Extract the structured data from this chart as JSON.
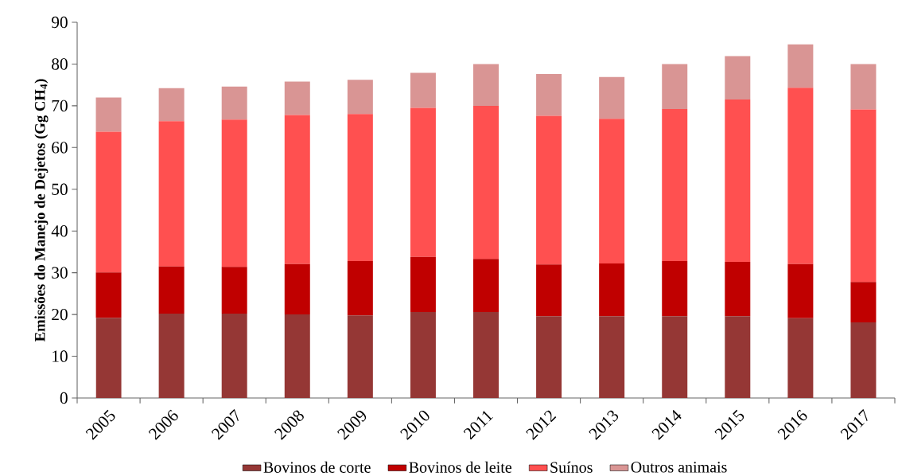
{
  "chart_data": {
    "type": "bar",
    "stacked": true,
    "ylabel": "Emissões do Manejo de Dejetos (Gg CH$_{4}$)",
    "categories": [
      "2005",
      "2006",
      "2007",
      "2008",
      "2009",
      "2010",
      "2011",
      "2012",
      "2013",
      "2014",
      "2015",
      "2016",
      "2017"
    ],
    "series": [
      {
        "name": "Bovinos de corte",
        "color": "#953735",
        "values": [
          19.2,
          20.2,
          20.2,
          20.0,
          19.8,
          20.6,
          20.6,
          19.6,
          19.6,
          19.6,
          19.6,
          19.1,
          18.1
        ]
      },
      {
        "name": "Bovinos de leite",
        "color": "#c00000",
        "values": [
          10.9,
          11.3,
          11.2,
          12.1,
          13.0,
          13.2,
          12.7,
          12.4,
          12.6,
          13.2,
          13.0,
          13.0,
          9.7
        ]
      },
      {
        "name": "Suínos",
        "color": "#ff5050",
        "values": [
          33.7,
          34.8,
          35.3,
          35.7,
          35.2,
          35.7,
          36.7,
          35.6,
          34.7,
          36.4,
          38.9,
          42.2,
          41.3
        ]
      },
      {
        "name": "Outros animais",
        "color": "#d99594",
        "values": [
          8.2,
          7.9,
          7.9,
          8.0,
          8.2,
          8.4,
          10.0,
          10.0,
          10.0,
          10.8,
          10.4,
          10.4,
          10.9
        ]
      }
    ],
    "ylim": [
      0,
      90
    ],
    "yticks": [
      0,
      10,
      20,
      30,
      40,
      50,
      60,
      70,
      80,
      90
    ],
    "legend": "bottom"
  }
}
